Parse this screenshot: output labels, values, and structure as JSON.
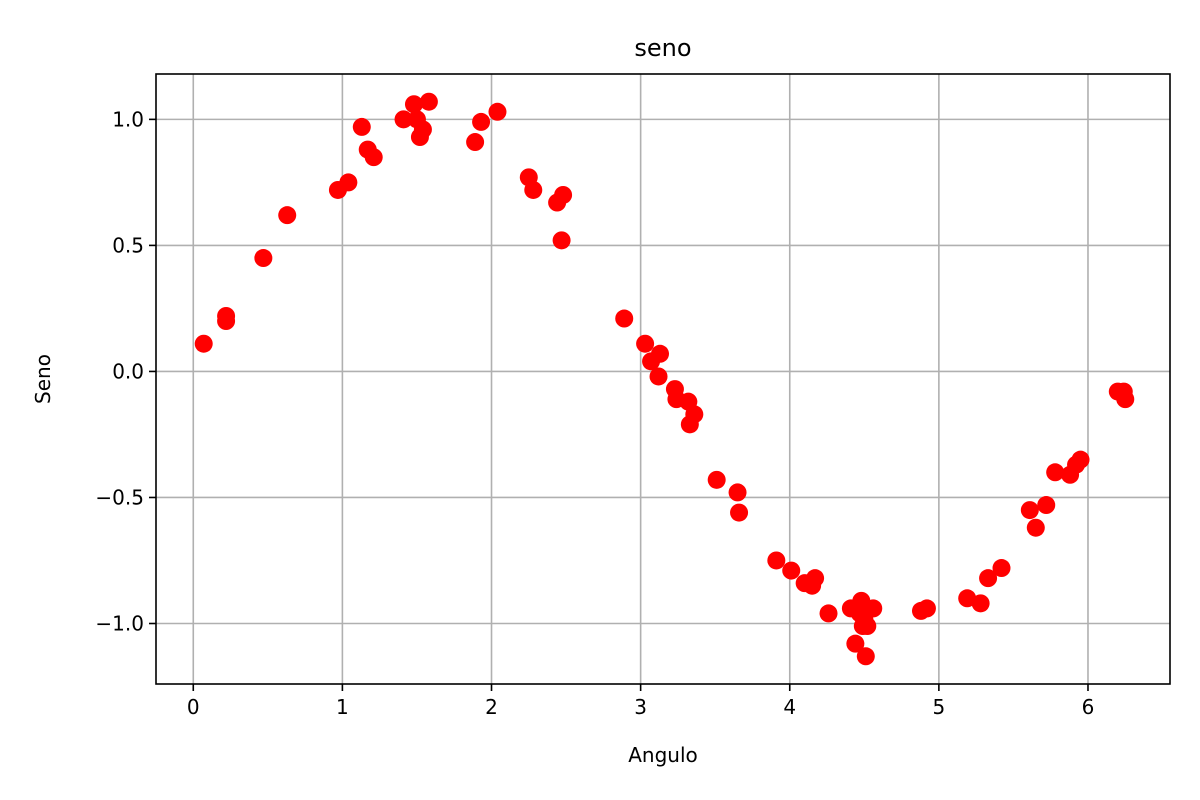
{
  "chart_data": {
    "type": "scatter",
    "title": "seno",
    "xlabel": "Angulo",
    "ylabel": "Seno",
    "xlim": [
      -0.25,
      6.55
    ],
    "ylim": [
      -1.24,
      1.18
    ],
    "xticks": [
      0,
      1,
      2,
      3,
      4,
      5,
      6
    ],
    "xtick_labels": [
      "0",
      "1",
      "2",
      "3",
      "4",
      "5",
      "6"
    ],
    "yticks": [
      1.0,
      0.5,
      0.0,
      -0.5,
      -1.0
    ],
    "ytick_labels": [
      "1.0",
      "0.5",
      "0.0",
      "−0.5",
      "−1.0"
    ],
    "grid": true,
    "marker_color": "#ff0000",
    "series": [
      {
        "x": [
          0.07,
          0.22,
          0.22,
          0.47,
          0.63,
          0.97,
          1.04,
          1.13,
          1.17,
          1.21,
          1.41,
          1.48,
          1.5,
          1.52,
          1.54,
          1.58,
          1.89,
          1.93,
          2.04,
          2.25,
          2.28,
          2.44,
          2.47,
          2.48,
          2.89,
          3.03,
          3.07,
          3.12,
          3.13,
          3.23,
          3.24,
          3.32,
          3.33,
          3.36,
          3.51,
          3.65,
          3.66,
          3.91,
          4.01,
          4.1,
          4.15,
          4.17,
          4.26,
          4.41,
          4.44,
          4.47,
          4.48,
          4.49,
          4.5,
          4.51,
          4.52,
          4.56,
          4.88,
          4.92,
          5.19,
          5.28,
          5.33,
          5.42,
          5.61,
          5.65,
          5.72,
          5.78,
          5.88,
          5.92,
          5.95,
          6.2,
          6.24,
          6.25
        ],
        "y": [
          0.11,
          0.2,
          0.22,
          0.45,
          0.62,
          0.72,
          0.75,
          0.97,
          0.88,
          0.85,
          1.0,
          1.06,
          1.0,
          0.93,
          0.96,
          1.07,
          0.91,
          0.99,
          1.03,
          0.77,
          0.72,
          0.67,
          0.52,
          0.7,
          0.21,
          0.11,
          0.04,
          -0.02,
          0.07,
          -0.07,
          -0.11,
          -0.12,
          -0.21,
          -0.17,
          -0.43,
          -0.48,
          -0.56,
          -0.75,
          -0.79,
          -0.84,
          -0.85,
          -0.82,
          -0.96,
          -0.94,
          -1.08,
          -0.96,
          -0.91,
          -1.01,
          -0.98,
          -1.13,
          -1.01,
          -0.94,
          -0.95,
          -0.94,
          -0.9,
          -0.92,
          -0.82,
          -0.78,
          -0.55,
          -0.62,
          -0.53,
          -0.4,
          -0.41,
          -0.37,
          -0.35,
          -0.08,
          -0.08,
          -0.11
        ]
      }
    ]
  }
}
